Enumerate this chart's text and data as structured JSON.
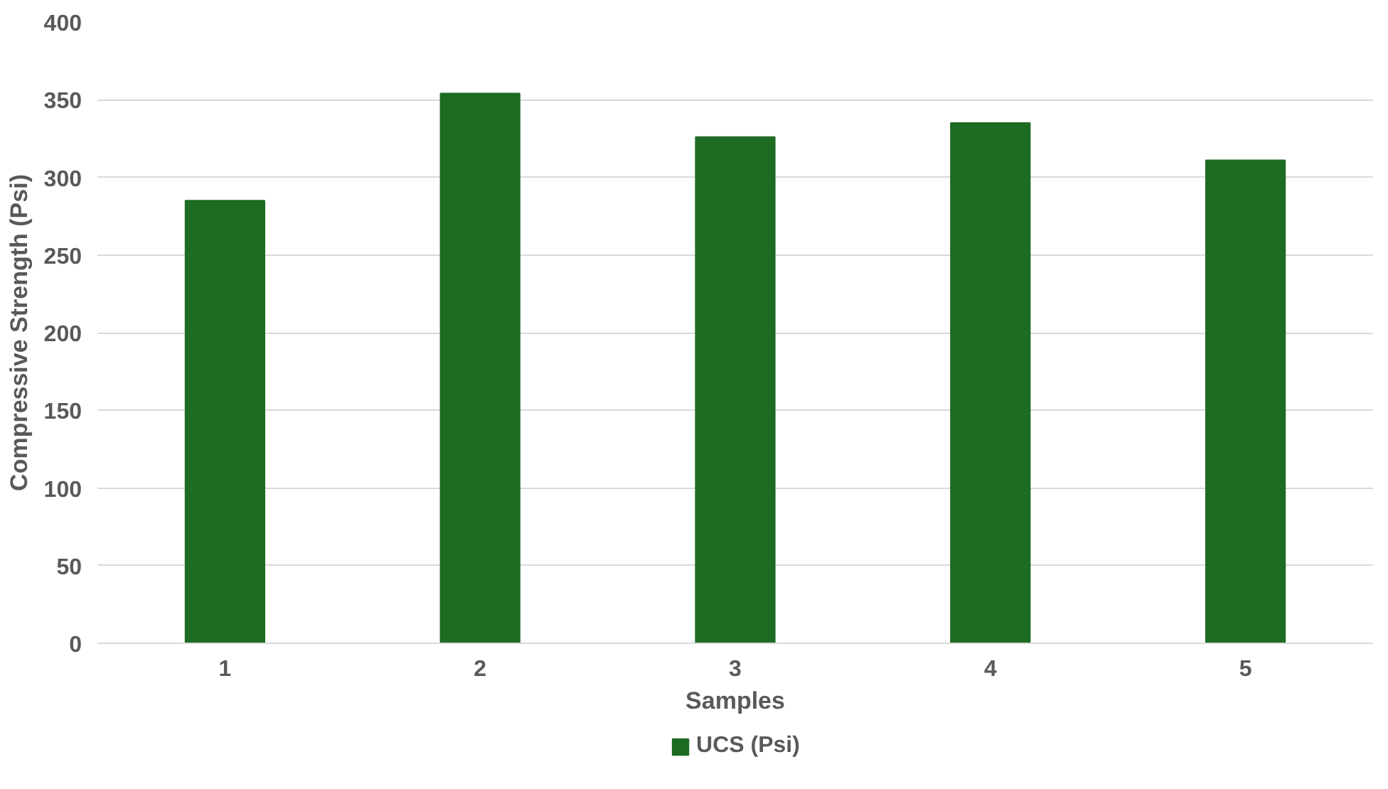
{
  "chart_data": {
    "type": "bar",
    "xlabel": "Samples",
    "ylabel": "Compressive Strength (Psi)",
    "categories": [
      "1",
      "2",
      "3",
      "4",
      "5"
    ],
    "series": [
      {
        "name": "UCS (Psi)",
        "color": "#1e6b24",
        "values": [
          285,
          354,
          326,
          335,
          311
        ]
      }
    ],
    "ylim": [
      0,
      400
    ],
    "yticks": [
      0,
      50,
      100,
      150,
      200,
      250,
      300,
      350,
      400
    ],
    "grid": "y",
    "legend": "bottom"
  }
}
